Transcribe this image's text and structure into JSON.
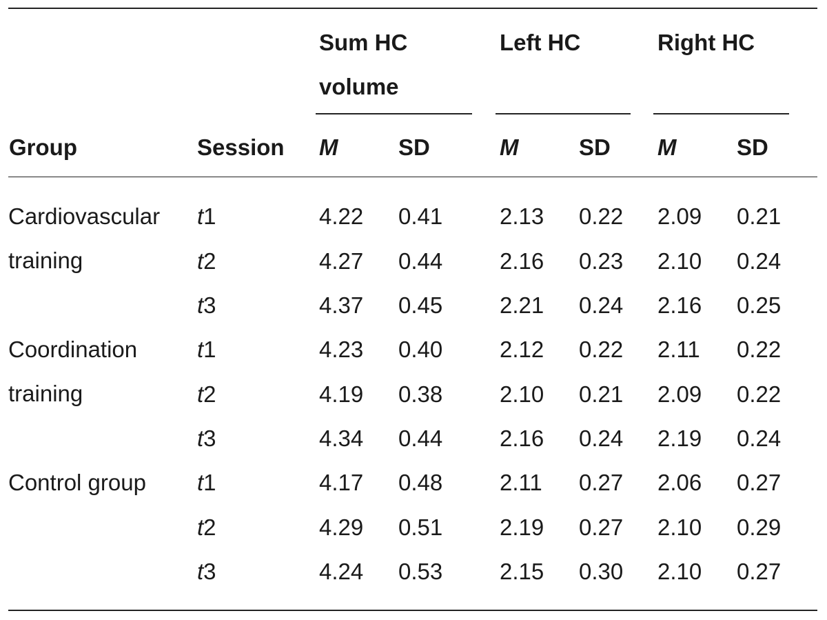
{
  "table": {
    "header": {
      "group": "Group",
      "session": "Session",
      "sum_hc": "Sum HC volume",
      "left_hc": "Left HC",
      "right_hc": "Right HC",
      "m": "M",
      "sd": "SD"
    },
    "groups": [
      {
        "name": "Cardiovascular training",
        "rows": [
          {
            "session_italic": "t",
            "session_num": "1",
            "sum_m": "4.22",
            "sum_sd": "0.41",
            "left_m": "2.13",
            "left_sd": "0.22",
            "right_m": "2.09",
            "right_sd": "0.21"
          },
          {
            "session_italic": "t",
            "session_num": "2",
            "sum_m": "4.27",
            "sum_sd": "0.44",
            "left_m": "2.16",
            "left_sd": "0.23",
            "right_m": "2.10",
            "right_sd": "0.24"
          },
          {
            "session_italic": "t",
            "session_num": "3",
            "sum_m": "4.37",
            "sum_sd": "0.45",
            "left_m": "2.21",
            "left_sd": "0.24",
            "right_m": "2.16",
            "right_sd": "0.25"
          }
        ]
      },
      {
        "name": "Coordination training",
        "rows": [
          {
            "session_italic": "t",
            "session_num": "1",
            "sum_m": "4.23",
            "sum_sd": "0.40",
            "left_m": "2.12",
            "left_sd": "0.22",
            "right_m": "2.11",
            "right_sd": "0.22"
          },
          {
            "session_italic": "t",
            "session_num": "2",
            "sum_m": "4.19",
            "sum_sd": "0.38",
            "left_m": "2.10",
            "left_sd": "0.21",
            "right_m": "2.09",
            "right_sd": "0.22"
          },
          {
            "session_italic": "t",
            "session_num": "3",
            "sum_m": "4.34",
            "sum_sd": "0.44",
            "left_m": "2.16",
            "left_sd": "0.24",
            "right_m": "2.19",
            "right_sd": "0.24"
          }
        ]
      },
      {
        "name": "Control group",
        "rows": [
          {
            "session_italic": "t",
            "session_num": "1",
            "sum_m": "4.17",
            "sum_sd": "0.48",
            "left_m": "2.11",
            "left_sd": "0.27",
            "right_m": "2.06",
            "right_sd": "0.27"
          },
          {
            "session_italic": "t",
            "session_num": "2",
            "sum_m": "4.29",
            "sum_sd": "0.51",
            "left_m": "2.19",
            "left_sd": "0.27",
            "right_m": "2.10",
            "right_sd": "0.29"
          },
          {
            "session_italic": "t",
            "session_num": "3",
            "sum_m": "4.24",
            "sum_sd": "0.53",
            "left_m": "2.15",
            "left_sd": "0.30",
            "right_m": "2.10",
            "right_sd": "0.27"
          }
        ]
      }
    ]
  }
}
